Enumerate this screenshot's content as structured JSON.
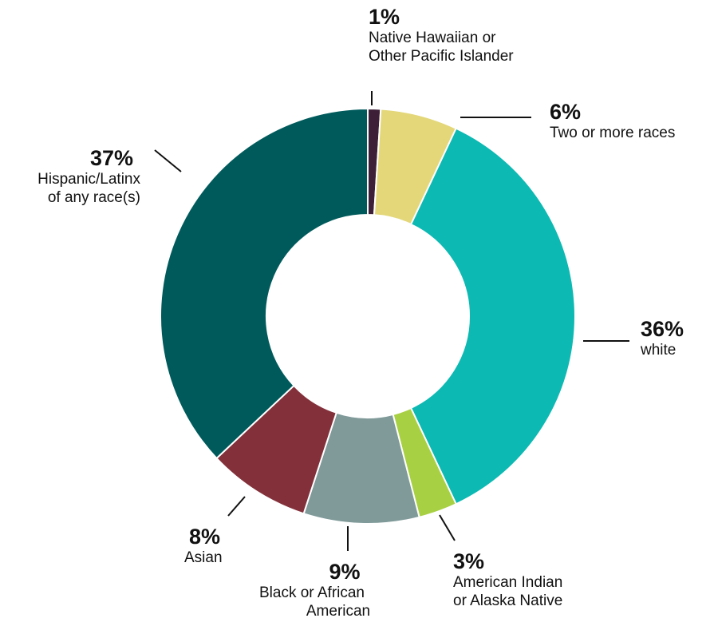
{
  "chart_data": {
    "type": "pie",
    "donut": true,
    "categories": [
      "Native Hawaiian or Other Pacific Islander",
      "Two or more races",
      "white",
      "American Indian or Alaska Native",
      "Black or African American",
      "Asian",
      "Hispanic/Latinx of any race(s)"
    ],
    "values": [
      1,
      6,
      36,
      3,
      9,
      8,
      37
    ],
    "colors": [
      "#3d2038",
      "#e3d77a",
      "#0cb9b3",
      "#a8d043",
      "#7f9a99",
      "#83303a",
      "#005a5b"
    ],
    "labels": [
      {
        "pct": "1%",
        "lines": [
          "Native Hawaiian or",
          "Other Pacific Islander"
        ]
      },
      {
        "pct": "6%",
        "lines": [
          "Two or more races"
        ]
      },
      {
        "pct": "36%",
        "lines": [
          "white"
        ]
      },
      {
        "pct": "3%",
        "lines": [
          "American Indian",
          "or Alaska Native"
        ]
      },
      {
        "pct": "9%",
        "lines": [
          "Black or African",
          "American"
        ]
      },
      {
        "pct": "8%",
        "lines": [
          "Asian"
        ]
      },
      {
        "pct": "37%",
        "lines": [
          "Hispanic/Latinx",
          "of any race(s)"
        ]
      }
    ],
    "legend": "none"
  }
}
